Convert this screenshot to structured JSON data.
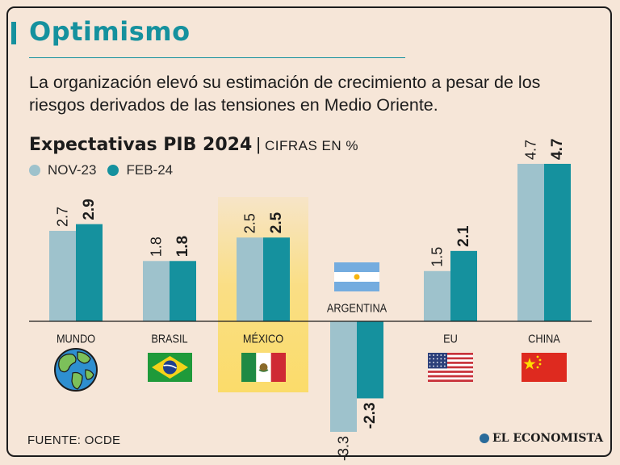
{
  "header": {
    "title": "Optimismo",
    "subtitle": "La organización elevó su estimación de crecimiento a pesar de los riesgos derivados de las tensiones en Medio Oriente."
  },
  "chart_heading": {
    "main": "Expectativas PIB 2024",
    "separator": "|",
    "unit": "CIFRAS EN %"
  },
  "legend": [
    {
      "label": "NOV-23",
      "color": "#9ec2cc"
    },
    {
      "label": "FEB-24",
      "color": "#15919e"
    }
  ],
  "highlight_color": "#fbdc6a",
  "chart_data": {
    "type": "bar",
    "title": "Expectativas PIB 2024",
    "ylabel": "CIFRAS EN %",
    "ylim": [
      -3.3,
      4.7
    ],
    "categories": [
      "MUNDO",
      "BRASIL",
      "MÉXICO",
      "ARGENTINA",
      "EU",
      "CHINA"
    ],
    "series": [
      {
        "name": "NOV-23",
        "values": [
          2.7,
          1.8,
          2.5,
          -3.3,
          1.5,
          4.7
        ]
      },
      {
        "name": "FEB-24",
        "values": [
          2.9,
          1.8,
          2.5,
          -2.3,
          2.1,
          4.7
        ]
      }
    ],
    "value_labels": {
      "NOV-23": [
        "2.7",
        "1.8",
        "2.5",
        "-3.3",
        "1.5",
        "4.7"
      ],
      "FEB-24": [
        "2.9",
        "1.8",
        "2.5",
        "-2.3",
        "2.1",
        "4.7"
      ]
    },
    "highlighted_category": "MÉXICO",
    "category_icons": [
      "globe-icon",
      "brazil-flag-icon",
      "mexico-flag-icon",
      "argentina-flag-icon",
      "usa-flag-icon",
      "china-flag-icon"
    ]
  },
  "footer": {
    "source": "FUENTE:  OCDE",
    "brand": "EL ECONOMISTA"
  }
}
